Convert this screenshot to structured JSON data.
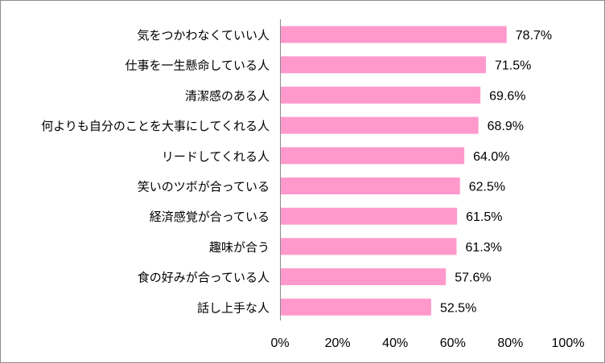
{
  "chart_data": {
    "type": "bar",
    "orientation": "horizontal",
    "title": "",
    "xlabel": "",
    "ylabel": "",
    "categories": [
      "気をつかわなくていい人",
      "仕事を一生懸命している人",
      "清潔感のある人",
      "何よりも自分のことを大事にしてくれる人",
      "リードしてくれる人",
      "笑いのツボが合っている",
      "経済感覚が合っている",
      "趣味が合う",
      "食の好みが合っている人",
      "話し上手な人"
    ],
    "values": [
      78.7,
      71.5,
      69.6,
      68.9,
      64.0,
      62.5,
      61.5,
      61.3,
      57.6,
      52.5
    ],
    "value_labels": [
      "78.7%",
      "71.5%",
      "69.6%",
      "68.9%",
      "64.0%",
      "62.5%",
      "61.5%",
      "61.3%",
      "57.6%",
      "52.5%"
    ],
    "xlim": [
      0,
      100
    ],
    "xticks": [
      0,
      20,
      40,
      60,
      80,
      100
    ],
    "xtick_labels": [
      "0%",
      "20%",
      "40%",
      "60%",
      "80%",
      "100%"
    ],
    "bar_color": "#ff99cc",
    "axis_color": "#8c8c8c",
    "grid": false,
    "legend": "none"
  }
}
